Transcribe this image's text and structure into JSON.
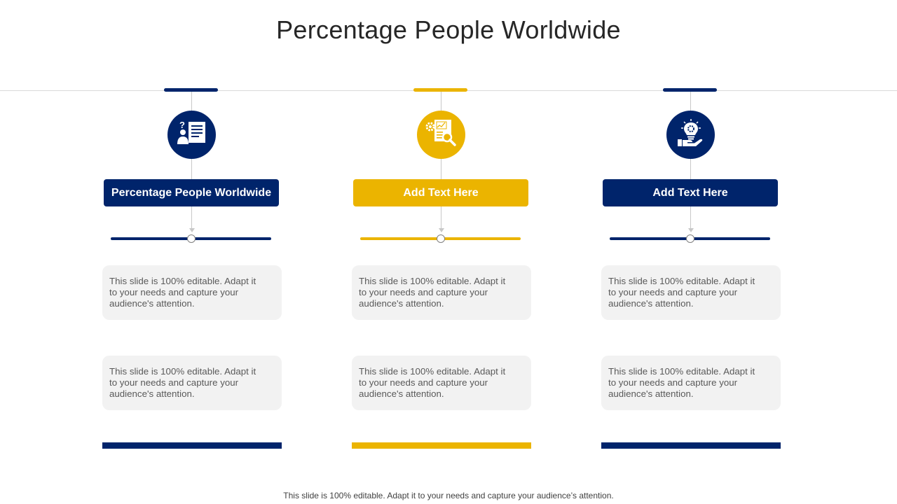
{
  "title": "Percentage People Worldwide",
  "footer": "This slide is 100% editable. Adapt it to your needs and capture your audience’s attention.",
  "colors": {
    "navy": "#00246b",
    "gold": "#ebb400",
    "box": "#f2f2f2"
  },
  "columns": [
    {
      "theme": "navy",
      "icon": "person-question-document-icon",
      "header": "Percentage People Worldwide",
      "text1": "This slide is 100% editable. Adapt it to your needs and capture your audience's attention.",
      "text2": "This slide is 100% editable. Adapt it to your needs and capture your audience's attention."
    },
    {
      "theme": "gold",
      "icon": "gear-report-magnifier-icon",
      "header": "Add  Text Here",
      "text1": "This slide is 100% editable. Adapt it to your needs and capture your audience's attention.",
      "text2": "This slide is 100% editable. Adapt it to your needs and capture your audience's attention."
    },
    {
      "theme": "navy",
      "icon": "lightbulb-gear-hand-icon",
      "header": "Add  Text Here",
      "text1": "This slide is 100% editable. Adapt it to your needs and capture your audience's attention.",
      "text2": "This slide is 100% editable. Adapt it to your needs and capture your audience's attention."
    }
  ]
}
